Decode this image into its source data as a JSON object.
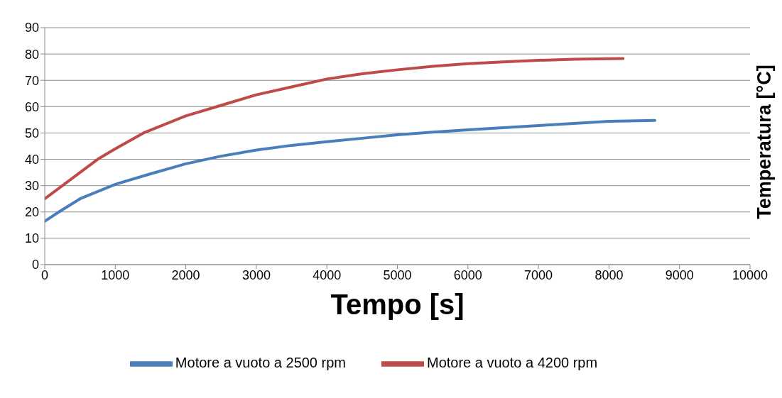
{
  "chart_data": {
    "type": "line",
    "xlabel": "Tempo [s]",
    "ylabel": "Temperatura [°C]",
    "xlim": [
      0,
      10000
    ],
    "xticks": [
      0,
      1000,
      2000,
      3000,
      4000,
      5000,
      6000,
      7000,
      8000,
      9000,
      10000
    ],
    "ylim": [
      0,
      90
    ],
    "yticks": [
      0,
      10,
      20,
      30,
      40,
      50,
      60,
      70,
      80,
      90
    ],
    "grid": "y",
    "legend": "bottom",
    "marker": "none",
    "line_style": "solid",
    "series": [
      {
        "name": "Motore a vuoto a 2500 rpm",
        "color": "#4a7ebb",
        "x": [
          0,
          200,
          500,
          1000,
          1500,
          2000,
          2500,
          3000,
          3500,
          4000,
          4500,
          5000,
          5500,
          6000,
          6500,
          7000,
          7500,
          8000,
          8650
        ],
        "values": [
          16.5,
          20,
          25,
          30.5,
          34.5,
          38.3,
          41.2,
          43.5,
          45.3,
          46.7,
          48,
          49.3,
          50.3,
          51.2,
          52,
          52.8,
          53.6,
          54.4,
          54.8
        ]
      },
      {
        "name": "Motore a vuoto a 4200 rpm",
        "color": "#be4b48",
        "x": [
          0,
          200,
          500,
          750,
          1000,
          1400,
          2000,
          2500,
          3000,
          3500,
          4000,
          4500,
          5000,
          5500,
          6000,
          6500,
          7000,
          7500,
          8000,
          8200
        ],
        "values": [
          25,
          29,
          35,
          40,
          44,
          50,
          56.5,
          60.5,
          64.5,
          67.5,
          70.5,
          72.5,
          74,
          75.3,
          76.3,
          77,
          77.6,
          78,
          78.2,
          78.3
        ]
      }
    ]
  }
}
